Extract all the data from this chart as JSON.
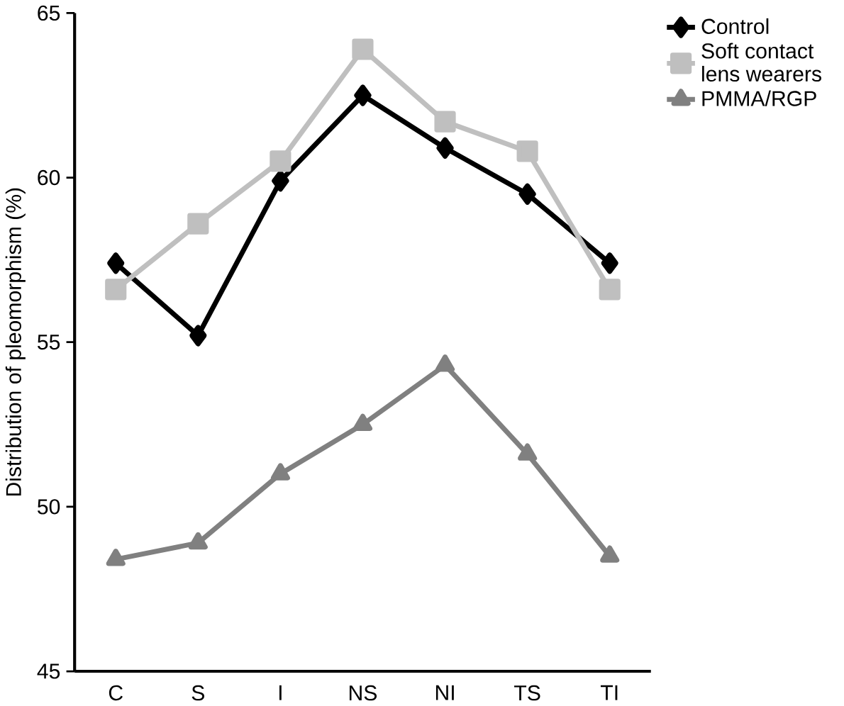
{
  "chart_data": {
    "type": "line",
    "ylabel": "Distribution of pleomorphism (%)",
    "categories": [
      "C",
      "S",
      "I",
      "NS",
      "NI",
      "TS",
      "TI"
    ],
    "series": [
      {
        "name": "Control",
        "color": "#000000",
        "marker": "diamond",
        "values": [
          57.4,
          55.2,
          59.9,
          62.5,
          60.9,
          59.5,
          57.4
        ]
      },
      {
        "name": "Soft contact lens wearers",
        "color": "#bfbfbf",
        "marker": "square",
        "values": [
          56.6,
          58.6,
          60.5,
          63.9,
          61.7,
          60.8,
          56.6
        ]
      },
      {
        "name": "PMMA/RGP",
        "color": "#808080",
        "marker": "triangle",
        "values": [
          48.4,
          48.9,
          51.0,
          52.5,
          54.3,
          51.6,
          48.5
        ]
      }
    ],
    "ylim": [
      45,
      65
    ],
    "yticks": [
      45,
      50,
      55,
      60,
      65
    ],
    "grid": false,
    "legend": "top right"
  }
}
